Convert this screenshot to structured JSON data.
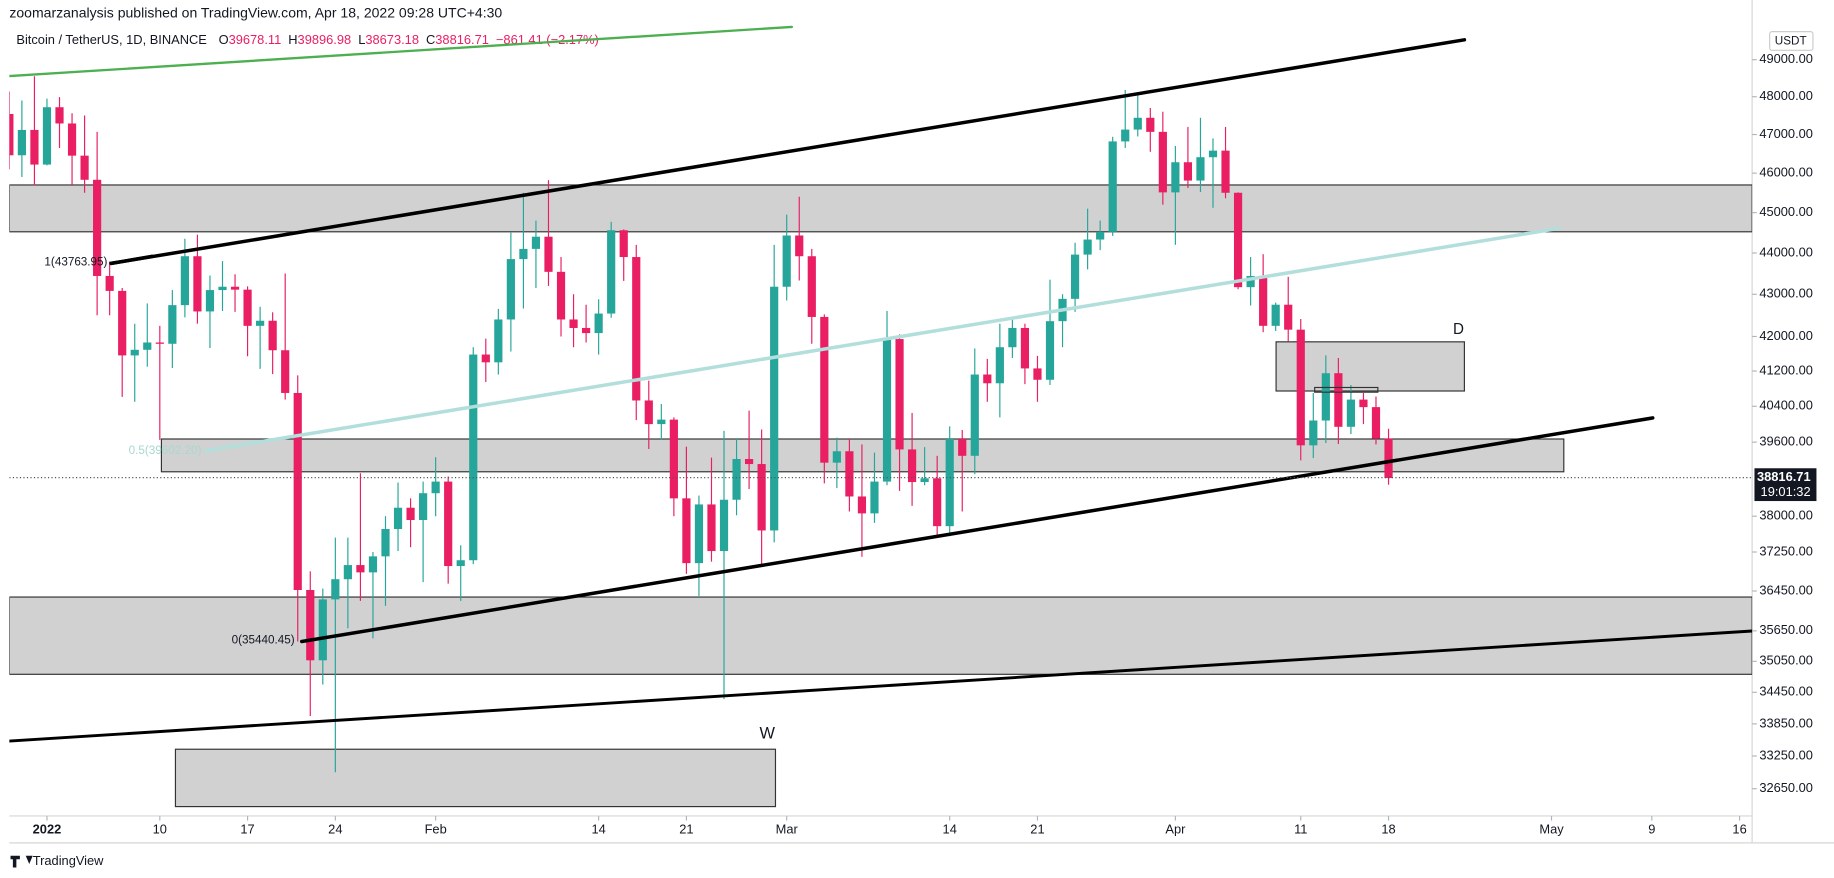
{
  "header": "zoomarzanalysis published on TradingView.com, Apr 18, 2022 09:28 UTC+4:30",
  "footer": "TradingView",
  "chart_data": {
    "type": "candlestick",
    "symbol": "Bitcoin / TetherUS, 1D, BINANCE",
    "ohlc_letters": [
      "O",
      "H",
      "L",
      "C"
    ],
    "change": "−861.41 (−2.17%)",
    "currency": "USDT",
    "countdown": "19:01:32",
    "annotations": [
      "W",
      "D",
      "1(43763.95)",
      "0(35440.45)",
      "0.5(39602.20)"
    ],
    "up_color": "#26a69a",
    "down_color": "#e91e63",
    "log_scale": true,
    "grid": false,
    "x": [
      "2021-12-29",
      "2021-12-30",
      "2021-12-31",
      "2022-01-01",
      "2022-01-02",
      "2022-01-03",
      "2022-01-04",
      "2022-01-05",
      "2022-01-06",
      "2022-01-07",
      "2022-01-08",
      "2022-01-09",
      "2022-01-10",
      "2022-01-11",
      "2022-01-12",
      "2022-01-13",
      "2022-01-14",
      "2022-01-15",
      "2022-01-16",
      "2022-01-17",
      "2022-01-18",
      "2022-01-19",
      "2022-01-20",
      "2022-01-21",
      "2022-01-22",
      "2022-01-23",
      "2022-01-24",
      "2022-01-25",
      "2022-01-26",
      "2022-01-27",
      "2022-01-28",
      "2022-01-29",
      "2022-01-30",
      "2022-01-31",
      "2022-02-01",
      "2022-02-02",
      "2022-02-03",
      "2022-02-04",
      "2022-02-05",
      "2022-02-06",
      "2022-02-07",
      "2022-02-08",
      "2022-02-09",
      "2022-02-10",
      "2022-02-11",
      "2022-02-12",
      "2022-02-13",
      "2022-02-14",
      "2022-02-15",
      "2022-02-16",
      "2022-02-17",
      "2022-02-18",
      "2022-02-19",
      "2022-02-20",
      "2022-02-21",
      "2022-02-22",
      "2022-02-23",
      "2022-02-24",
      "2022-02-25",
      "2022-02-26",
      "2022-02-27",
      "2022-02-28",
      "2022-03-01",
      "2022-03-02",
      "2022-03-03",
      "2022-03-04",
      "2022-03-05",
      "2022-03-06",
      "2022-03-07",
      "2022-03-08",
      "2022-03-09",
      "2022-03-10",
      "2022-03-11",
      "2022-03-12",
      "2022-03-13",
      "2022-03-14",
      "2022-03-15",
      "2022-03-16",
      "2022-03-17",
      "2022-03-18",
      "2022-03-19",
      "2022-03-20",
      "2022-03-21",
      "2022-03-22",
      "2022-03-23",
      "2022-03-24",
      "2022-03-25",
      "2022-03-26",
      "2022-03-27",
      "2022-03-28",
      "2022-03-29",
      "2022-03-30",
      "2022-03-31",
      "2022-04-01",
      "2022-04-02",
      "2022-04-03",
      "2022-04-04",
      "2022-04-05",
      "2022-04-06",
      "2022-04-07",
      "2022-04-08",
      "2022-04-09",
      "2022-04-10",
      "2022-04-11",
      "2022-04-12",
      "2022-04-13",
      "2022-04-14",
      "2022-04-15",
      "2022-04-16",
      "2022-04-17",
      "2022-04-18"
    ],
    "open": [
      47540,
      46460,
      47120,
      46220,
      47720,
      47290,
      46450,
      45830,
      43440,
      43080,
      41560,
      41690,
      41860,
      41830,
      42740,
      43920,
      42590,
      43100,
      43180,
      43110,
      42250,
      42370,
      41680,
      40700,
      36470,
      35070,
      36280,
      36690,
      36980,
      36830,
      37160,
      37730,
      38180,
      37920,
      38490,
      38740,
      36960,
      37080,
      41580,
      41400,
      42400,
      43850,
      44100,
      44400,
      43540,
      42400,
      42200,
      42080,
      42540,
      44560,
      43900,
      40530,
      40000,
      40100,
      38380,
      37020,
      38250,
      37270,
      38350,
      39230,
      39120,
      37700,
      43180,
      44430,
      43920,
      42460,
      39150,
      39400,
      38420,
      38060,
      38740,
      41940,
      39440,
      38730,
      38810,
      37790,
      39670,
      39300,
      41120,
      40920,
      41750,
      42200,
      41260,
      41000,
      42360,
      42890,
      43960,
      44330,
      44520,
      46820,
      47130,
      47440,
      47070,
      45510,
      46280,
      45810,
      46410,
      46580,
      45500,
      43170,
      43440,
      42250,
      42750,
      42160,
      39530,
      40080,
      41150,
      39940,
      40550,
      40380,
      39678.11
    ],
    "high": [
      48140,
      47900,
      48550,
      47950,
      47990,
      47560,
      47500,
      47070,
      43790,
      43150,
      42300,
      42780,
      42250,
      43100,
      44350,
      44450,
      43450,
      43800,
      43480,
      43190,
      42700,
      42570,
      43500,
      41100,
      36850,
      36500,
      37550,
      37550,
      38920,
      37250,
      38000,
      38720,
      38380,
      38740,
      39270,
      38850,
      37390,
      41750,
      41950,
      42650,
      44500,
      45500,
      44800,
      45820,
      43900,
      43000,
      42750,
      42880,
      44770,
      44580,
      44200,
      40980,
      40450,
      40150,
      39500,
      38440,
      39260,
      39850,
      39690,
      40300,
      39880,
      44200,
      44950,
      45400,
      44100,
      42520,
      39700,
      39670,
      39550,
      39370,
      42600,
      42050,
      40250,
      39490,
      39300,
      39950,
      39870,
      41720,
      41480,
      42300,
      42400,
      42300,
      41550,
      43350,
      43000,
      44250,
      45100,
      44800,
      46940,
      48180,
      48100,
      47700,
      47600,
      46700,
      47200,
      47440,
      46900,
      47200,
      45510,
      43900,
      43970,
      42800,
      43420,
      42410,
      40700,
      41560,
      41500,
      40880,
      40700,
      40620,
      39896.98
    ],
    "low": [
      46100,
      45900,
      45680,
      46200,
      46650,
      45700,
      45500,
      42500,
      42500,
      40610,
      40500,
      41300,
      39650,
      41270,
      42450,
      42300,
      41730,
      42600,
      42580,
      41540,
      41250,
      41130,
      40550,
      35440,
      34000,
      34600,
      32950,
      35700,
      36250,
      35500,
      36150,
      37270,
      37350,
      36630,
      38000,
      36600,
      36250,
      37000,
      40950,
      41120,
      41650,
      42660,
      43150,
      43200,
      42000,
      41750,
      41860,
      41580,
      42440,
      43320,
      40090,
      39450,
      39650,
      38000,
      36800,
      36350,
      37050,
      34320,
      38020,
      38580,
      37000,
      37450,
      42850,
      43330,
      41830,
      38700,
      38600,
      38100,
      37150,
      37860,
      38660,
      38540,
      38220,
      38660,
      37580,
      37580,
      38100,
      38900,
      40500,
      40150,
      41500,
      40900,
      40500,
      40880,
      41750,
      42580,
      43600,
      44070,
      44420,
      46650,
      46950,
      46550,
      45200,
      44200,
      45620,
      45520,
      45120,
      45360,
      43120,
      42730,
      42100,
      42130,
      41880,
      39200,
      39250,
      39580,
      39560,
      39780,
      40000,
      39550,
      38673.18
    ],
    "close": [
      46460,
      47120,
      46220,
      47720,
      47290,
      46450,
      45830,
      43440,
      43080,
      41560,
      41690,
      41860,
      41830,
      42740,
      43920,
      42590,
      43100,
      43180,
      43110,
      42250,
      42370,
      41680,
      40700,
      36470,
      35070,
      36280,
      36690,
      36980,
      36830,
      37160,
      37730,
      38180,
      37920,
      38490,
      38740,
      36960,
      37080,
      41580,
      41400,
      42400,
      43850,
      44100,
      44400,
      43540,
      42400,
      42200,
      42080,
      42540,
      44560,
      43900,
      40530,
      40000,
      40100,
      38380,
      37020,
      38250,
      37270,
      38350,
      39230,
      39120,
      37700,
      43180,
      44430,
      43920,
      42460,
      39150,
      39400,
      38420,
      38060,
      38740,
      41940,
      39440,
      38730,
      38810,
      37790,
      39670,
      39300,
      41120,
      40920,
      41750,
      42200,
      41260,
      41000,
      42360,
      42890,
      43960,
      44330,
      44520,
      46820,
      47130,
      47440,
      47070,
      45510,
      46280,
      45810,
      46410,
      46580,
      45500,
      43170,
      43440,
      42250,
      42750,
      42160,
      39530,
      40080,
      41150,
      39940,
      40550,
      40380,
      39680,
      38816.71
    ],
    "xlim": [
      "2021-12-29",
      "2022-05-17"
    ],
    "xticks": [
      {
        "value": "2022-01-01",
        "label": "2022"
      },
      {
        "value": "2022-01-10",
        "label": "10"
      },
      {
        "value": "2022-01-17",
        "label": "17"
      },
      {
        "value": "2022-01-24",
        "label": "24"
      },
      {
        "value": "2022-02-01",
        "label": "Feb"
      },
      {
        "value": "2022-02-14",
        "label": "14"
      },
      {
        "value": "2022-02-21",
        "label": "21"
      },
      {
        "value": "2022-03-01",
        "label": "Mar"
      },
      {
        "value": "2022-03-14",
        "label": "14"
      },
      {
        "value": "2022-03-21",
        "label": "21"
      },
      {
        "value": "2022-04-01",
        "label": "Apr"
      },
      {
        "value": "2022-04-11",
        "label": "11"
      },
      {
        "value": "2022-04-18",
        "label": "18"
      },
      {
        "value": "2022-05-01",
        "label": "May"
      },
      {
        "value": "2022-05-09",
        "label": "9"
      },
      {
        "value": "2022-05-16",
        "label": "16"
      }
    ],
    "ylim": [
      32200,
      50000
    ],
    "yticks": [
      {
        "value": 49000,
        "label": "49000.00"
      },
      {
        "value": 48000,
        "label": "48000.00"
      },
      {
        "value": 47000,
        "label": "47000.00"
      },
      {
        "value": 46000,
        "label": "46000.00"
      },
      {
        "value": 45000,
        "label": "45000.00"
      },
      {
        "value": 44000,
        "label": "44000.00"
      },
      {
        "value": 43000,
        "label": "43000.00"
      },
      {
        "value": 42000,
        "label": "42000.00"
      },
      {
        "value": 41200,
        "label": "41200.00"
      },
      {
        "value": 40400,
        "label": "40400.00"
      },
      {
        "value": 39600,
        "label": "39600.00"
      },
      {
        "value": 38000,
        "label": "38000.00"
      },
      {
        "value": 37250,
        "label": "37250.00"
      },
      {
        "value": 36450,
        "label": "36450.00"
      },
      {
        "value": 35650,
        "label": "35650.00"
      },
      {
        "value": 35050,
        "label": "35050.00"
      },
      {
        "value": 34450,
        "label": "34450.00"
      },
      {
        "value": 33850,
        "label": "33850.00"
      },
      {
        "value": 33250,
        "label": "33250.00"
      },
      {
        "value": 32650,
        "label": "32650.00"
      }
    ]
  }
}
